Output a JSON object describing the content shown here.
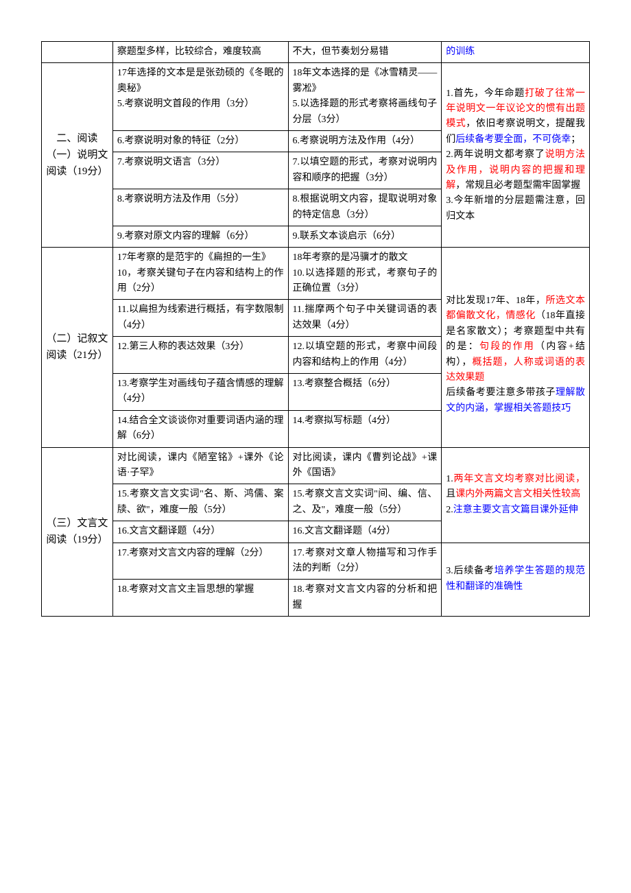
{
  "colors": {
    "black": "#000000",
    "red": "#ff0000",
    "blue": "#0000ff",
    "bg": "#ffffff"
  },
  "row0": {
    "c17": "察题型多样，比较综合，难度较高",
    "c18": "不大，但节奏划分易错",
    "cc_a": "的训练"
  },
  "section2": {
    "label": "二、阅读（一）说明文阅读（19分）",
    "r1_17": "17年选择的文本是是张劲硕的《冬眠的奥秘》\n5.考察说明文首段的作用（3分）",
    "r1_18": "18年文本选择的是《冰雪精灵——雾凇》\n5.以选择题的形式考察将画线句子分层（3分）",
    "r2_17": "6.考察说明对象的特征（2分）",
    "r2_18": "6.考察说明方法及作用（4分）",
    "r3_17": "7.考察说明文语言（3分）",
    "r3_18": "7.以填空题的形式，考察对说明内容和顺序的把握（3分）",
    "r4_17": "8.考察说明方法及作用（5分）",
    "r4_18": "8.根据说明文内容，提取说明对象的特定信息（3分）",
    "r5_17": "9.考察对原文内容的理解（6分）",
    "r5_18": "9.联系文本谈启示（6分）",
    "cc_p1a": "1.首先，今年命题",
    "cc_p1b": "打破了往常一年说明文一年议论文的惯有出题模式",
    "cc_p1c": "，依旧考察说明文，提醒我们",
    "cc_p1d": "后续备考要全面，不可侥幸",
    "cc_p1e": "；",
    "cc_p2a": "2.两年说明文都考察了",
    "cc_p2b": "说明方法及作用，说明内容的把握和理解",
    "cc_p2c": "，常规且必考题型需牢固掌握",
    "cc_p3": "3.今年新增的分层题需注意，回归文本"
  },
  "section3": {
    "label": "（二）记叙文阅读（21分）",
    "r1_17": "17年考察的是范宇的《扁担的一生》\n10，考察关键句子在内容和结构上的作用（2分）",
    "r1_18": "18年考察的是冯骥才的散文\n10.以选择题的形式，考察句子的正确位置（3分）",
    "r2_17": "11.以扁担为线索进行概括，有字数限制（4分）",
    "r2_18": "11.揣摩两个句子中关键词语的表达效果（4分）",
    "r3_17": "12.第三人称的表达效果（3分）",
    "r3_18": "12.以填空题的形式，考察中间段内容和结构上的作用（4分）",
    "r4_17": "13.考察学生对画线句子蕴含情感的理解（4分）",
    "r4_18": "13.考察整合概括（6分）",
    "r5_17": "14.结合全文谈谈你对重要词语内涵的理解（6分）",
    "r5_18": "14.考察拟写标题（4分）",
    "cc_a": "对比发现17年、18年，",
    "cc_b": "所选文本都偏散文化，情感化",
    "cc_c": "（18年直接是名家散文）；考察题型中共有的是：",
    "cc_d": "句段的作用",
    "cc_e": "（内容+结构），",
    "cc_f": "概括题，人称或词语的表达效果题",
    "cc_g": "\n后续备考要注意多带孩子",
    "cc_h": "理解散文的内涵，掌握相关答题技巧"
  },
  "section4": {
    "label": "（三）文言文阅读（19分）",
    "r1_17": "对比阅读，课内《陋室铭》+课外《论语·子罕》",
    "r1_18": "对比阅读，课内《曹刿论战》+课外《国语》",
    "r2_17": "15.考察文言文实词\"名、斯、鸿儒、案牍、欲\"，难度一般（5分）",
    "r2_18": "15.考察文言文实词\"间、编、信、之、及\"，难度一般（5分）",
    "r3_17": "16.文言文翻译题（4分）",
    "r3_18": "16.文言文翻译题（4分）",
    "r4_17": "17.考察对文言文内容的理解（2分）",
    "r4_18": "17.考察对文章人物描写和习作手法的判断（2分）",
    "r5_17": "18.考察对文言文主旨思想的掌握",
    "r5_18": "18.考察对文言文内容的分析和把握",
    "cc1_a": "1.",
    "cc1_b": "两年文言文均考察对比阅读，",
    "cc1_c": "且",
    "cc1_d": "课内外两篇文言文相关性较高",
    "cc2_a": "2.",
    "cc2_b": "注意主要文言文篇目课外延伸",
    "cc3_a": "3.后续备考",
    "cc3_b": "培养学生答题的规范性和翻译的准确性"
  }
}
